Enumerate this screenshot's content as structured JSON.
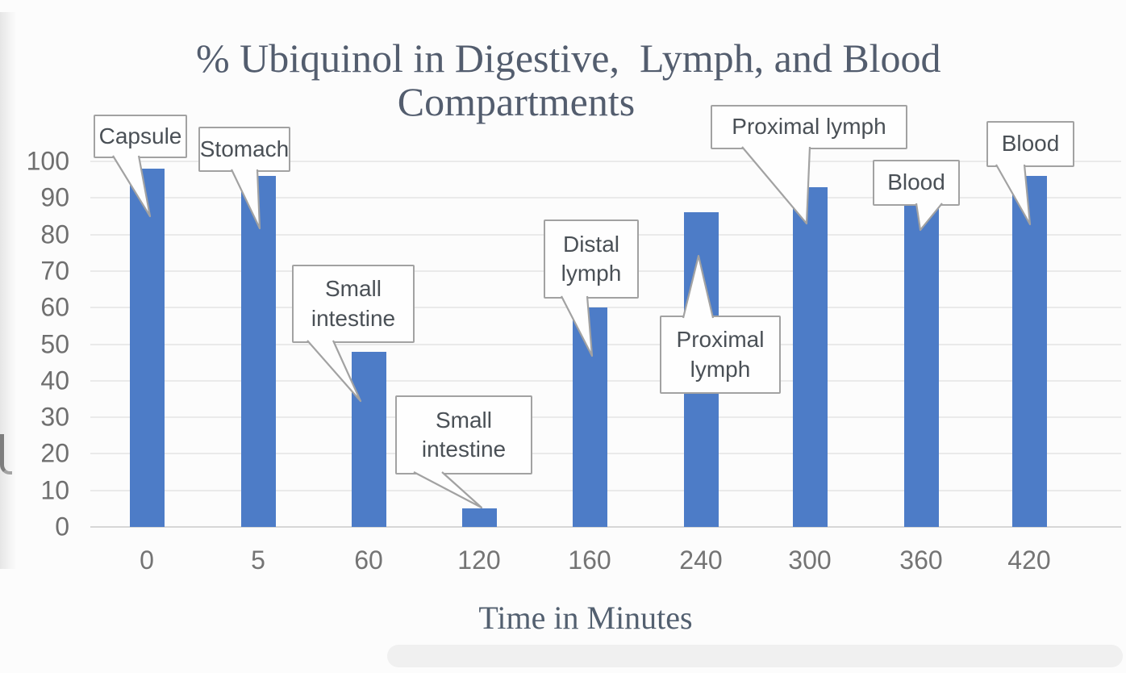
{
  "chart_data": {
    "type": "bar",
    "title_line1": "% Ubiquinol in Digestive,  Lymph, and Blood",
    "title_line2": "Compartments",
    "xlabel": "Time in Minutes",
    "ylabel": "",
    "categories": [
      "0",
      "5",
      "60",
      "120",
      "160",
      "240",
      "300",
      "360",
      "420"
    ],
    "values": [
      98,
      96,
      48,
      5,
      60,
      86,
      93,
      88,
      96
    ],
    "y_ticks": [
      0,
      10,
      20,
      30,
      40,
      50,
      60,
      70,
      80,
      90,
      100
    ],
    "ylim": [
      0,
      100
    ],
    "grid": "horizontal-only",
    "legend": "none",
    "bar_color": "#4d7cc7",
    "annotations": [
      {
        "bar_index": 0,
        "lines": [
          "Capsule"
        ]
      },
      {
        "bar_index": 1,
        "lines": [
          "Stomach"
        ]
      },
      {
        "bar_index": 2,
        "lines": [
          "Small",
          "intestine"
        ]
      },
      {
        "bar_index": 3,
        "lines": [
          "Small",
          "intestine"
        ]
      },
      {
        "bar_index": 4,
        "lines": [
          "Distal",
          "lymph"
        ]
      },
      {
        "bar_index": 5,
        "lines": [
          "Proximal",
          "lymph"
        ]
      },
      {
        "bar_index": 6,
        "lines": [
          "Proximal lymph"
        ]
      },
      {
        "bar_index": 7,
        "lines": [
          "Blood"
        ]
      },
      {
        "bar_index": 8,
        "lines": [
          "Blood"
        ]
      }
    ]
  }
}
